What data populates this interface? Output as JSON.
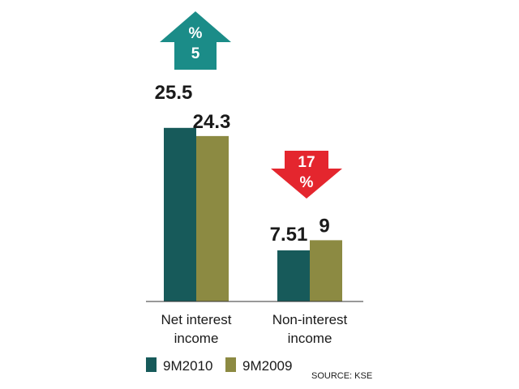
{
  "chart_data": {
    "type": "bar",
    "categories": [
      [
        "Net interest",
        "income"
      ],
      [
        "Non-interest",
        "income"
      ]
    ],
    "series": [
      {
        "name": "9M2010",
        "color": "#175a5a",
        "values": [
          25.5,
          7.51
        ],
        "labels": [
          "25.5",
          "7.51"
        ]
      },
      {
        "name": "9M2009",
        "color": "#8c8a42",
        "values": [
          24.3,
          9
        ],
        "labels": [
          "24.3",
          "9"
        ]
      }
    ],
    "changes": [
      {
        "direction": "up",
        "color": "#1b8c88",
        "line1": "%",
        "line2": "5"
      },
      {
        "direction": "down",
        "color": "#e4262e",
        "line1": "17",
        "line2": "%"
      }
    ],
    "legend": {
      "placement": "bottom-left"
    },
    "source": "SOURCE: KSE",
    "grid": false
  }
}
